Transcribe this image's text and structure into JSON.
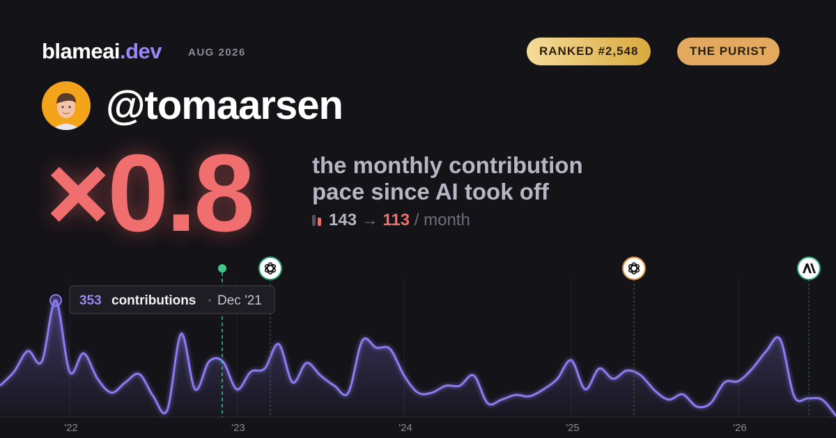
{
  "header": {
    "brand": "blameai",
    "brand_suffix": ".dev",
    "period": "AUG 2026",
    "rank": "RANKED #2,548",
    "badge": "THE PURIST"
  },
  "profile": {
    "handle": "@tomaarsen"
  },
  "summary": {
    "multiplier": "×0.8",
    "description": [
      "the monthly contribution",
      "pace since AI took off"
    ],
    "before": 143,
    "arrow": "→",
    "after": 113,
    "unit": "/ month"
  },
  "tooltip": {
    "label": "contributions",
    "date": "Dec '21",
    "value_path": "chart_data.values.4"
  },
  "chart_data": {
    "type": "line",
    "color": "#8b7cf0",
    "categories": [
      null,
      null,
      null,
      null,
      null,
      "'22",
      null,
      null,
      null,
      null,
      null,
      null,
      null,
      null,
      null,
      null,
      null,
      "'23",
      null,
      null,
      null,
      null,
      null,
      null,
      null,
      null,
      null,
      null,
      null,
      "'24",
      null,
      null,
      null,
      null,
      null,
      null,
      null,
      null,
      null,
      null,
      null,
      "'25",
      null,
      null,
      null,
      null,
      null,
      null,
      null,
      null,
      null,
      null,
      null,
      "'26",
      null,
      null,
      null,
      null,
      null,
      null,
      null
    ],
    "values": [
      95,
      137,
      200,
      168,
      353,
      137,
      193,
      116,
      74,
      105,
      130,
      63,
      21,
      252,
      84,
      168,
      168,
      84,
      137,
      147,
      221,
      105,
      164,
      126,
      95,
      74,
      231,
      210,
      206,
      126,
      74,
      74,
      95,
      95,
      126,
      42,
      53,
      67,
      63,
      84,
      116,
      172,
      84,
      147,
      116,
      141,
      126,
      80,
      53,
      69,
      32,
      42,
      105,
      109,
      147,
      200,
      235,
      63,
      57,
      53,
      4
    ]
  }
}
